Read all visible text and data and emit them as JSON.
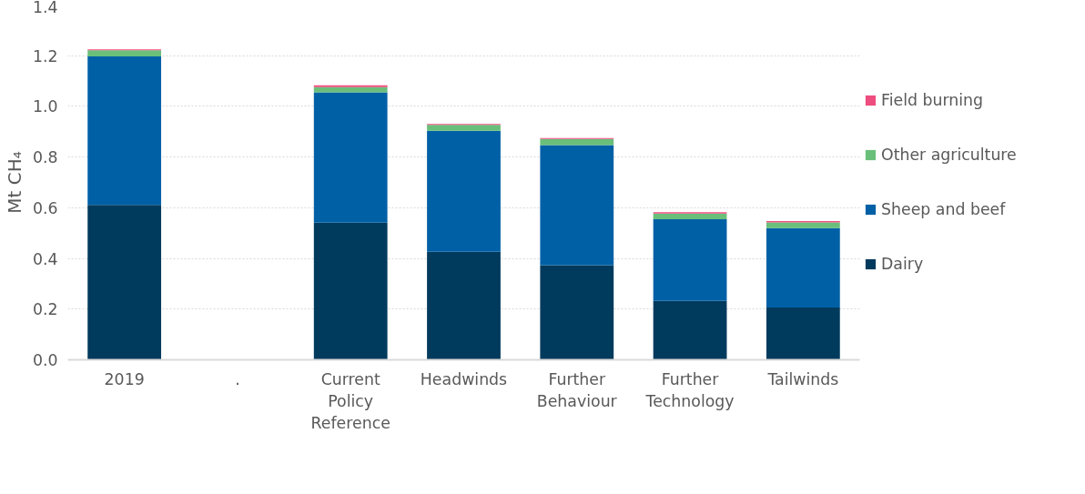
{
  "chart_data": {
    "type": "bar",
    "stacked": true,
    "ylabel": "Mt CH₄",
    "categories": [
      "2019",
      ".",
      "Current Policy Reference",
      "Headwinds",
      "Further Behaviour",
      "Further Technology",
      "Tailwinds"
    ],
    "series": [
      {
        "name": "Dairy",
        "color": "#003a5d",
        "values": [
          0.611,
          null,
          0.541,
          0.426,
          0.373,
          0.232,
          0.206
        ]
      },
      {
        "name": "Sheep and beef",
        "color": "#0060a6",
        "values": [
          0.586,
          null,
          0.514,
          0.478,
          0.474,
          0.323,
          0.314
        ]
      },
      {
        "name": "Other agriculture",
        "color": "#6abf7a",
        "values": [
          0.024,
          null,
          0.021,
          0.023,
          0.024,
          0.022,
          0.022
        ]
      },
      {
        "name": "Field burning",
        "color": "#ee4d7f",
        "values": [
          0.004,
          null,
          0.007,
          0.004,
          0.004,
          0.005,
          0.005
        ]
      }
    ],
    "ylim": [
      0,
      1.4
    ],
    "yticks": [
      {
        "value": 0,
        "label": "0.0"
      },
      {
        "value": 0.2,
        "label": "0.2"
      },
      {
        "value": 0.4,
        "label": "0.4"
      },
      {
        "value": 0.6,
        "label": "0.6"
      },
      {
        "value": 0.8,
        "label": "0.8"
      },
      {
        "value": 1,
        "label": "1.0"
      },
      {
        "value": 1.2,
        "label": "1.2"
      },
      {
        "value": 1.4,
        "label": "1.4"
      }
    ],
    "grid": "y",
    "legend": "right"
  }
}
